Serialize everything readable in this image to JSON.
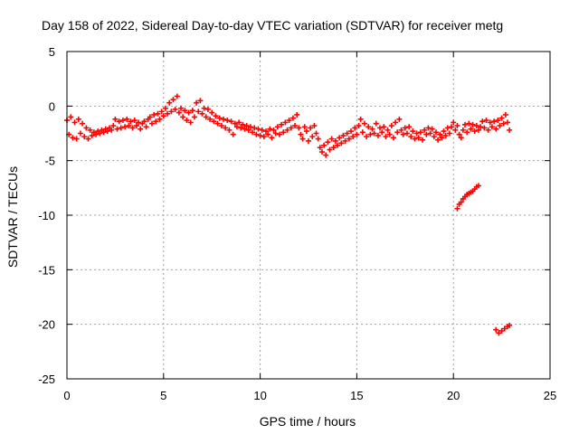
{
  "chart_data": {
    "type": "scatter",
    "title": "Day 158 of 2022, Sidereal Day-to-day VTEC variation (SDTVAR) for receiver metg",
    "xlabel": "GPS time / hours",
    "ylabel": "SDTVAR / TECUs",
    "xlim": [
      0,
      25
    ],
    "ylim": [
      -25,
      5
    ],
    "xticks": [
      0,
      5,
      10,
      15,
      20,
      25
    ],
    "yticks": [
      5,
      0,
      -5,
      -10,
      -15,
      -20,
      -25
    ],
    "xtick_labels": [
      "0",
      "5",
      "10",
      "15",
      "20",
      "25"
    ],
    "ytick_labels": [
      "5",
      "0",
      "-5",
      "-10",
      "-15",
      "-20",
      "-25"
    ],
    "grid": true,
    "marker": "+",
    "color": "#ff0000",
    "series": [
      {
        "name": "SDTVAR",
        "points": [
          [
            0.0,
            -1.3
          ],
          [
            0.1,
            -2.6
          ],
          [
            0.2,
            -1.0
          ],
          [
            0.3,
            -2.9
          ],
          [
            0.4,
            -1.5
          ],
          [
            0.5,
            -3.0
          ],
          [
            0.6,
            -1.2
          ],
          [
            0.7,
            -2.5
          ],
          [
            0.8,
            -1.6
          ],
          [
            0.9,
            -2.8
          ],
          [
            1.0,
            -2.0
          ],
          [
            1.1,
            -3.0
          ],
          [
            1.2,
            -2.2
          ],
          [
            1.3,
            -2.7
          ],
          [
            1.4,
            -2.4
          ],
          [
            1.5,
            -2.6
          ],
          [
            1.6,
            -2.3
          ],
          [
            1.7,
            -2.5
          ],
          [
            1.8,
            -2.2
          ],
          [
            1.9,
            -2.4
          ],
          [
            2.0,
            -2.1
          ],
          [
            2.1,
            -2.3
          ],
          [
            2.2,
            -2.0
          ],
          [
            2.3,
            -2.2
          ],
          [
            2.4,
            -1.8
          ],
          [
            2.5,
            -1.2
          ],
          [
            2.6,
            -2.1
          ],
          [
            2.7,
            -1.4
          ],
          [
            2.8,
            -2.0
          ],
          [
            2.9,
            -1.3
          ],
          [
            3.0,
            -1.9
          ],
          [
            3.1,
            -1.2
          ],
          [
            3.2,
            -1.8
          ],
          [
            3.3,
            -1.4
          ],
          [
            3.4,
            -2.0
          ],
          [
            3.5,
            -1.3
          ],
          [
            3.6,
            -1.8
          ],
          [
            3.7,
            -1.5
          ],
          [
            3.8,
            -2.1
          ],
          [
            3.9,
            -1.6
          ],
          [
            4.0,
            -1.4
          ],
          [
            4.1,
            -1.9
          ],
          [
            4.2,
            -1.2
          ],
          [
            4.3,
            -1.0
          ],
          [
            4.4,
            -1.6
          ],
          [
            4.5,
            -0.8
          ],
          [
            4.6,
            -1.4
          ],
          [
            4.7,
            -0.7
          ],
          [
            4.8,
            -1.2
          ],
          [
            4.9,
            -0.5
          ],
          [
            5.0,
            -0.9
          ],
          [
            5.1,
            -0.2
          ],
          [
            5.2,
            -0.7
          ],
          [
            5.3,
            0.3
          ],
          [
            5.4,
            -0.5
          ],
          [
            5.5,
            0.6
          ],
          [
            5.6,
            -0.3
          ],
          [
            5.7,
            0.9
          ],
          [
            5.8,
            -0.6
          ],
          [
            5.9,
            -0.2
          ],
          [
            6.0,
            -1.0
          ],
          [
            6.1,
            -0.4
          ],
          [
            6.2,
            -1.3
          ],
          [
            6.3,
            -0.6
          ],
          [
            6.4,
            -1.5
          ],
          [
            6.5,
            -0.4
          ],
          [
            6.6,
            -1.0
          ],
          [
            6.7,
            0.3
          ],
          [
            6.8,
            -0.5
          ],
          [
            6.9,
            0.5
          ],
          [
            7.0,
            -0.7
          ],
          [
            7.1,
            -0.2
          ],
          [
            7.2,
            -1.0
          ],
          [
            7.3,
            -0.3
          ],
          [
            7.4,
            -1.2
          ],
          [
            7.5,
            -0.6
          ],
          [
            7.6,
            -1.4
          ],
          [
            7.7,
            -0.9
          ],
          [
            7.8,
            -1.6
          ],
          [
            7.9,
            -1.1
          ],
          [
            8.0,
            -1.8
          ],
          [
            8.1,
            -1.2
          ],
          [
            8.2,
            -2.0
          ],
          [
            8.3,
            -1.3
          ],
          [
            8.4,
            -2.2
          ],
          [
            8.5,
            -1.4
          ],
          [
            8.6,
            -2.6
          ],
          [
            8.7,
            -1.6
          ],
          [
            8.8,
            -1.9
          ],
          [
            8.9,
            -1.5
          ],
          [
            9.0,
            -2.0
          ],
          [
            9.1,
            -1.7
          ],
          [
            9.2,
            -2.1
          ],
          [
            9.3,
            -1.8
          ],
          [
            9.4,
            -2.2
          ],
          [
            9.5,
            -1.9
          ],
          [
            9.6,
            -2.4
          ],
          [
            9.7,
            -2.0
          ],
          [
            9.8,
            -2.6
          ],
          [
            9.9,
            -2.1
          ],
          [
            10.0,
            -2.7
          ],
          [
            10.1,
            -2.2
          ],
          [
            10.2,
            -2.8
          ],
          [
            10.3,
            -2.3
          ],
          [
            10.4,
            -2.6
          ],
          [
            10.5,
            -2.1
          ],
          [
            10.6,
            -2.9
          ],
          [
            10.7,
            -2.2
          ],
          [
            10.8,
            -2.5
          ],
          [
            10.9,
            -1.9
          ],
          [
            11.0,
            -2.6
          ],
          [
            11.1,
            -1.7
          ],
          [
            11.2,
            -2.4
          ],
          [
            11.3,
            -1.5
          ],
          [
            11.4,
            -2.2
          ],
          [
            11.5,
            -1.3
          ],
          [
            11.6,
            -2.0
          ],
          [
            11.7,
            -1.1
          ],
          [
            11.8,
            -1.8
          ],
          [
            11.9,
            -0.8
          ],
          [
            12.0,
            -2.0
          ],
          [
            12.1,
            -2.6
          ],
          [
            12.2,
            -3.0
          ],
          [
            12.3,
            -1.9
          ],
          [
            12.4,
            -2.3
          ],
          [
            12.5,
            -3.2
          ],
          [
            12.6,
            -2.0
          ],
          [
            12.7,
            -2.8
          ],
          [
            12.8,
            -1.8
          ],
          [
            12.9,
            -2.5
          ],
          [
            13.0,
            -3.0
          ],
          [
            13.1,
            -3.8
          ],
          [
            13.2,
            -4.2
          ],
          [
            13.3,
            -3.6
          ],
          [
            13.4,
            -4.5
          ],
          [
            13.5,
            -3.3
          ],
          [
            13.6,
            -4.0
          ],
          [
            13.7,
            -3.0
          ],
          [
            13.8,
            -3.8
          ],
          [
            13.9,
            -3.2
          ],
          [
            14.0,
            -3.6
          ],
          [
            14.1,
            -2.9
          ],
          [
            14.2,
            -3.4
          ],
          [
            14.3,
            -2.7
          ],
          [
            14.4,
            -3.2
          ],
          [
            14.5,
            -2.5
          ],
          [
            14.6,
            -3.0
          ],
          [
            14.7,
            -2.3
          ],
          [
            14.8,
            -2.8
          ],
          [
            14.9,
            -2.0
          ],
          [
            15.0,
            -2.6
          ],
          [
            15.1,
            -1.8
          ],
          [
            15.2,
            -1.2
          ],
          [
            15.3,
            -2.4
          ],
          [
            15.4,
            -1.6
          ],
          [
            15.5,
            -2.8
          ],
          [
            15.6,
            -1.9
          ],
          [
            15.7,
            -2.6
          ],
          [
            15.8,
            -2.1
          ],
          [
            15.9,
            -2.5
          ],
          [
            16.0,
            -1.6
          ],
          [
            16.1,
            -2.7
          ],
          [
            16.2,
            -2.0
          ],
          [
            16.3,
            -2.4
          ],
          [
            16.4,
            -1.9
          ],
          [
            16.5,
            -2.8
          ],
          [
            16.6,
            -2.2
          ],
          [
            16.7,
            -2.6
          ],
          [
            16.8,
            -1.8
          ],
          [
            16.9,
            -2.9
          ],
          [
            17.0,
            -1.5
          ],
          [
            17.1,
            -2.4
          ],
          [
            17.2,
            -1.2
          ],
          [
            17.3,
            -2.2
          ],
          [
            17.4,
            -2.6
          ],
          [
            17.5,
            -2.0
          ],
          [
            17.6,
            -2.5
          ],
          [
            17.7,
            -1.9
          ],
          [
            17.8,
            -2.8
          ],
          [
            17.9,
            -2.3
          ],
          [
            18.0,
            -3.0
          ],
          [
            18.1,
            -2.5
          ],
          [
            18.2,
            -2.9
          ],
          [
            18.3,
            -2.4
          ],
          [
            18.4,
            -3.1
          ],
          [
            18.5,
            -2.2
          ],
          [
            18.6,
            -2.6
          ],
          [
            18.7,
            -2.0
          ],
          [
            18.8,
            -2.5
          ],
          [
            18.9,
            -2.1
          ],
          [
            19.0,
            -2.8
          ],
          [
            19.1,
            -2.4
          ],
          [
            19.2,
            -3.1
          ],
          [
            19.3,
            -2.6
          ],
          [
            19.4,
            -2.9
          ],
          [
            19.5,
            -2.3
          ],
          [
            19.6,
            -2.7
          ],
          [
            19.7,
            -2.0
          ],
          [
            19.8,
            -2.5
          ],
          [
            19.9,
            -1.9
          ],
          [
            20.0,
            -1.5
          ],
          [
            20.1,
            -2.2
          ],
          [
            20.2,
            -1.8
          ],
          [
            20.3,
            -2.6
          ],
          [
            20.4,
            -2.9
          ],
          [
            20.5,
            -2.2
          ],
          [
            20.6,
            -1.7
          ],
          [
            20.7,
            -2.4
          ],
          [
            20.8,
            -1.6
          ],
          [
            20.9,
            -2.1
          ],
          [
            21.0,
            -1.7
          ],
          [
            21.1,
            -2.3
          ],
          [
            21.2,
            -1.8
          ],
          [
            21.3,
            -2.2
          ],
          [
            21.4,
            -1.9
          ],
          [
            21.5,
            -1.4
          ],
          [
            21.6,
            -2.0
          ],
          [
            21.7,
            -1.3
          ],
          [
            21.8,
            -2.2
          ],
          [
            21.9,
            -1.5
          ],
          [
            22.0,
            -1.9
          ],
          [
            22.1,
            -1.4
          ],
          [
            22.2,
            -2.1
          ],
          [
            22.3,
            -1.3
          ],
          [
            22.4,
            -1.8
          ],
          [
            22.5,
            -1.1
          ],
          [
            22.6,
            -1.6
          ],
          [
            22.7,
            -0.8
          ],
          [
            22.8,
            -1.5
          ],
          [
            22.9,
            -2.2
          ],
          [
            20.2,
            -9.4
          ],
          [
            20.3,
            -9.0
          ],
          [
            20.4,
            -8.8
          ],
          [
            20.5,
            -8.5
          ],
          [
            20.6,
            -8.3
          ],
          [
            20.7,
            -8.1
          ],
          [
            20.8,
            -8.0
          ],
          [
            20.9,
            -7.9
          ],
          [
            21.0,
            -7.8
          ],
          [
            21.1,
            -7.6
          ],
          [
            21.2,
            -7.4
          ],
          [
            21.3,
            -7.3
          ],
          [
            22.2,
            -20.5
          ],
          [
            22.35,
            -20.8
          ],
          [
            22.5,
            -20.6
          ],
          [
            22.65,
            -20.4
          ],
          [
            22.8,
            -20.2
          ],
          [
            22.9,
            -20.1
          ]
        ]
      }
    ]
  }
}
